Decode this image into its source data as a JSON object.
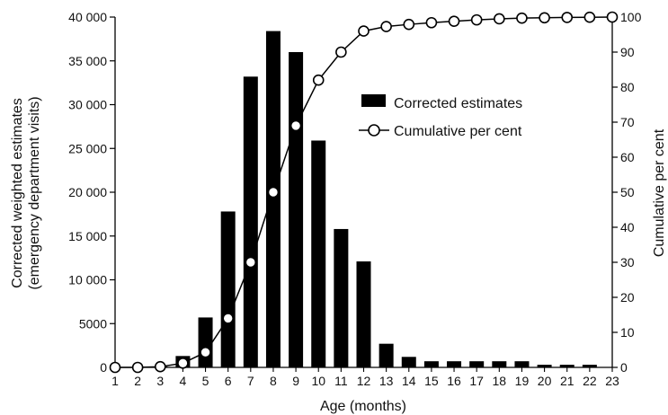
{
  "chart_data": {
    "type": "bar",
    "title": "",
    "xlabel": "Age (months)",
    "ylabel_left_line1": "Corrected weighted estimates",
    "ylabel_left_line2": "(emergency department visits)",
    "ylabel_right": "Cumulative per cent",
    "categories": [
      "1",
      "2",
      "3",
      "4",
      "5",
      "6",
      "7",
      "8",
      "9",
      "10",
      "11",
      "12",
      "13",
      "14",
      "15",
      "16",
      "17",
      "18",
      "19",
      "20",
      "21",
      "22",
      "23"
    ],
    "y_left_lim": [
      0,
      40000
    ],
    "y_left_ticks": [
      {
        "value": 0,
        "label": "0"
      },
      {
        "value": 5000,
        "label": "5000"
      },
      {
        "value": 10000,
        "label": "10 000"
      },
      {
        "value": 15000,
        "label": "15 000"
      },
      {
        "value": 20000,
        "label": "20 000"
      },
      {
        "value": 25000,
        "label": "25 000"
      },
      {
        "value": 30000,
        "label": "30 000"
      },
      {
        "value": 35000,
        "label": "35 000"
      },
      {
        "value": 40000,
        "label": "40 000"
      }
    ],
    "y_right_lim": [
      0,
      100
    ],
    "y_right_ticks": [
      0,
      10,
      20,
      30,
      40,
      50,
      60,
      70,
      80,
      90,
      100
    ],
    "series": [
      {
        "name": "Corrected estimates",
        "type": "bar",
        "axis": "left",
        "color": "#000000",
        "values": [
          0,
          0,
          100,
          1300,
          5700,
          17800,
          33200,
          38400,
          36000,
          25900,
          15800,
          12100,
          2700,
          1200,
          700,
          700,
          700,
          700,
          700,
          300,
          300,
          300,
          0
        ]
      },
      {
        "name": "Cumulative per cent",
        "type": "line",
        "axis": "right",
        "marker": "open-circle",
        "color": "#000000",
        "values": [
          0,
          0,
          0.2,
          1.2,
          4.3,
          14,
          30,
          50,
          69,
          82,
          90,
          96,
          97.3,
          97.9,
          98.4,
          98.8,
          99.2,
          99.5,
          99.7,
          99.8,
          99.9,
          99.95,
          100
        ]
      }
    ],
    "legend": {
      "placement": "top-right",
      "entries": [
        "Corrected estimates",
        "Cumulative per cent"
      ]
    },
    "grid": false
  }
}
